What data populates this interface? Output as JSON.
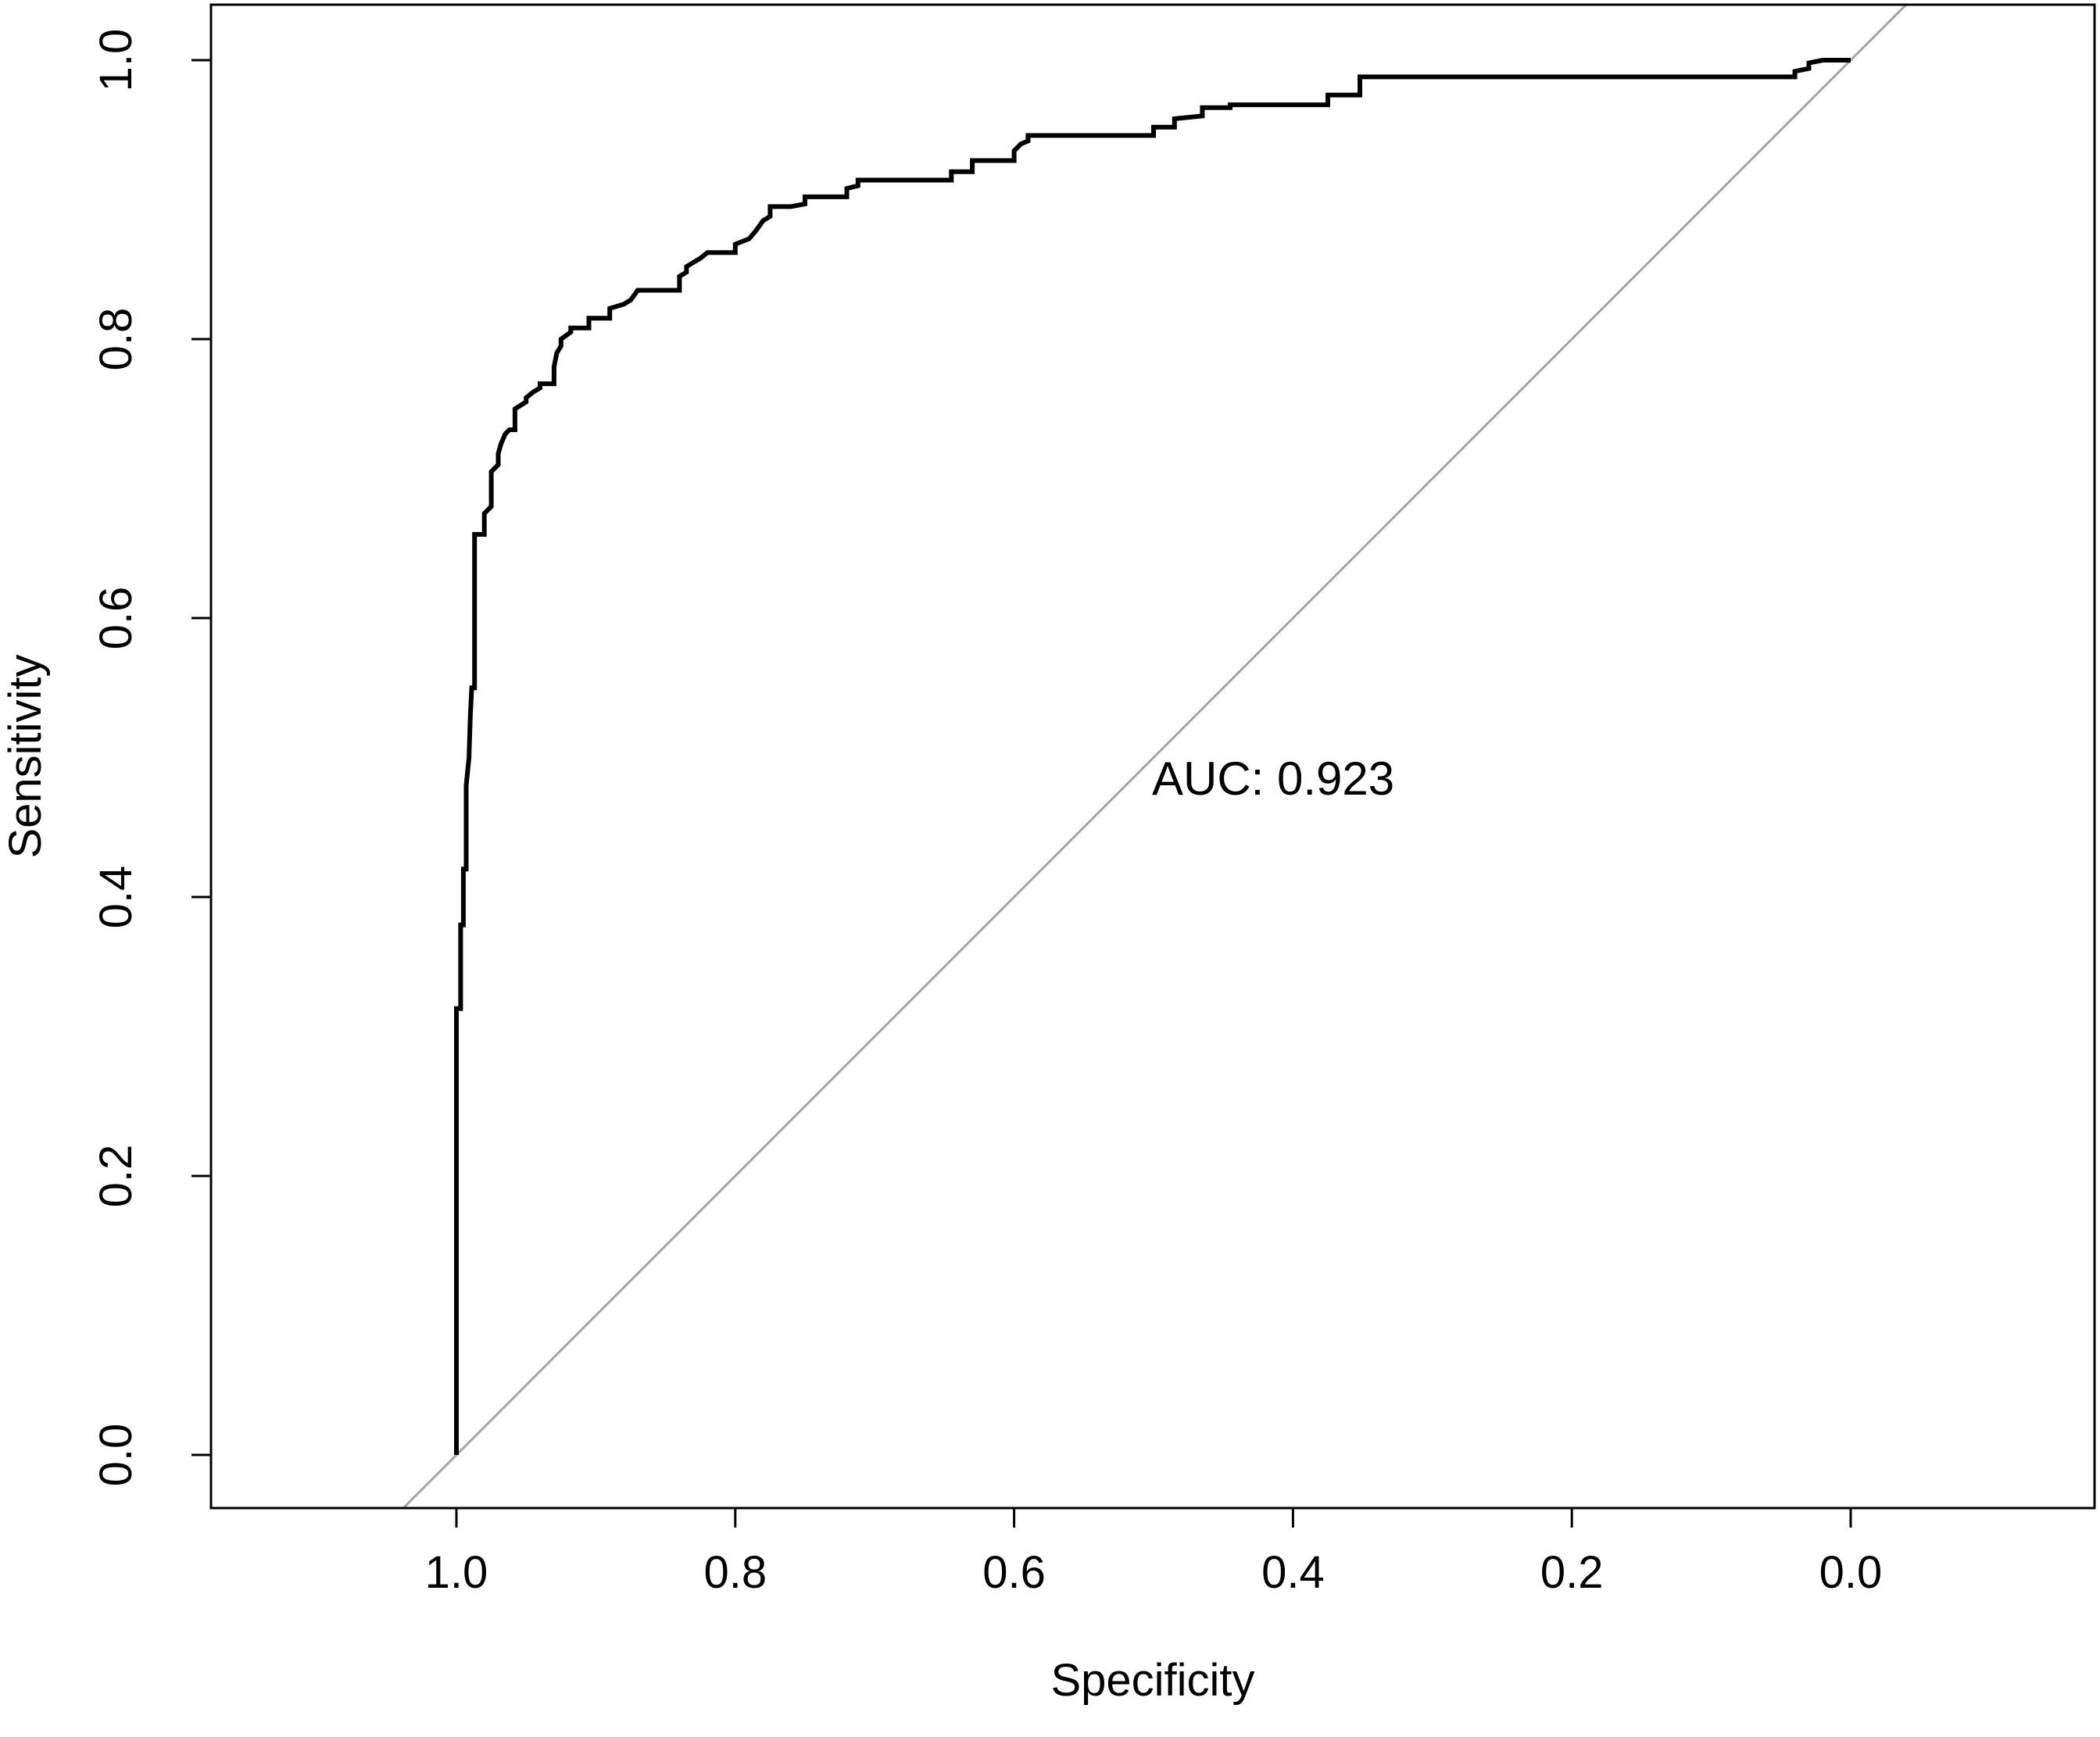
{
  "chart_data": {
    "type": "line",
    "xlabel": "Specificity",
    "ylabel": "Sensitivity",
    "x_reversed": true,
    "xlim": [
      1.15,
      -0.1
    ],
    "ylim": [
      -0.05,
      1.04
    ],
    "x_ticks": [
      1.0,
      0.8,
      0.6,
      0.4,
      0.2,
      0.0
    ],
    "x_tick_labels": [
      "1.0",
      "0.8",
      "0.6",
      "0.4",
      "0.2",
      "0.0"
    ],
    "y_ticks": [
      0.0,
      0.2,
      0.4,
      0.6,
      0.8,
      1.0
    ],
    "y_tick_labels": [
      "0.0",
      "0.2",
      "0.4",
      "0.6",
      "0.8",
      "1.0"
    ],
    "grid": false,
    "annotation": {
      "text": "AUC: 0.923",
      "x": 0.5,
      "y": 0.48
    },
    "colors": {
      "roc_curve": "#000000",
      "reference_line": "#a6a6a6",
      "axes": "#000000"
    },
    "reference_line": {
      "name": "chance diagonal",
      "slope": -1,
      "intercept": 1
    },
    "series": [
      {
        "specificity": [
          1.0,
          1.0,
          0.997,
          0.997,
          0.995,
          0.995,
          0.993,
          0.993,
          0.991,
          0.99,
          0.989,
          0.987,
          0.987,
          0.98,
          0.98,
          0.975,
          0.975,
          0.97,
          0.97,
          0.968,
          0.965,
          0.962,
          0.958,
          0.958,
          0.95,
          0.95,
          0.945,
          0.94,
          0.94,
          0.93,
          0.93,
          0.928,
          0.925,
          0.925,
          0.918,
          0.918,
          0.905,
          0.905,
          0.89,
          0.89,
          0.88,
          0.875,
          0.87,
          0.84,
          0.84,
          0.835,
          0.835,
          0.83,
          0.825,
          0.82,
          0.81,
          0.8,
          0.8,
          0.79,
          0.785,
          0.78,
          0.775,
          0.775,
          0.76,
          0.75,
          0.75,
          0.72,
          0.72,
          0.712,
          0.712,
          0.645,
          0.645,
          0.63,
          0.63,
          0.6,
          0.6,
          0.595,
          0.59,
          0.59,
          0.5,
          0.5,
          0.485,
          0.485,
          0.465,
          0.465,
          0.445,
          0.445,
          0.375,
          0.375,
          0.352,
          0.352,
          0.04,
          0.04,
          0.03,
          0.03,
          0.02,
          0.02,
          0.0
        ],
        "sensitivity": [
          0.0,
          0.32,
          0.32,
          0.38,
          0.38,
          0.42,
          0.42,
          0.48,
          0.5,
          0.53,
          0.55,
          0.55,
          0.66,
          0.66,
          0.675,
          0.68,
          0.705,
          0.71,
          0.718,
          0.725,
          0.732,
          0.735,
          0.735,
          0.75,
          0.755,
          0.758,
          0.762,
          0.765,
          0.768,
          0.768,
          0.78,
          0.79,
          0.795,
          0.8,
          0.805,
          0.808,
          0.808,
          0.815,
          0.815,
          0.822,
          0.825,
          0.828,
          0.835,
          0.835,
          0.845,
          0.848,
          0.852,
          0.855,
          0.858,
          0.862,
          0.862,
          0.862,
          0.868,
          0.872,
          0.878,
          0.885,
          0.888,
          0.895,
          0.895,
          0.897,
          0.902,
          0.902,
          0.908,
          0.91,
          0.914,
          0.914,
          0.92,
          0.92,
          0.928,
          0.928,
          0.935,
          0.94,
          0.942,
          0.946,
          0.946,
          0.952,
          0.952,
          0.958,
          0.96,
          0.966,
          0.966,
          0.968,
          0.968,
          0.975,
          0.975,
          0.988,
          0.988,
          0.992,
          0.994,
          0.998,
          1.0,
          1.0,
          1.0
        ]
      }
    ]
  }
}
